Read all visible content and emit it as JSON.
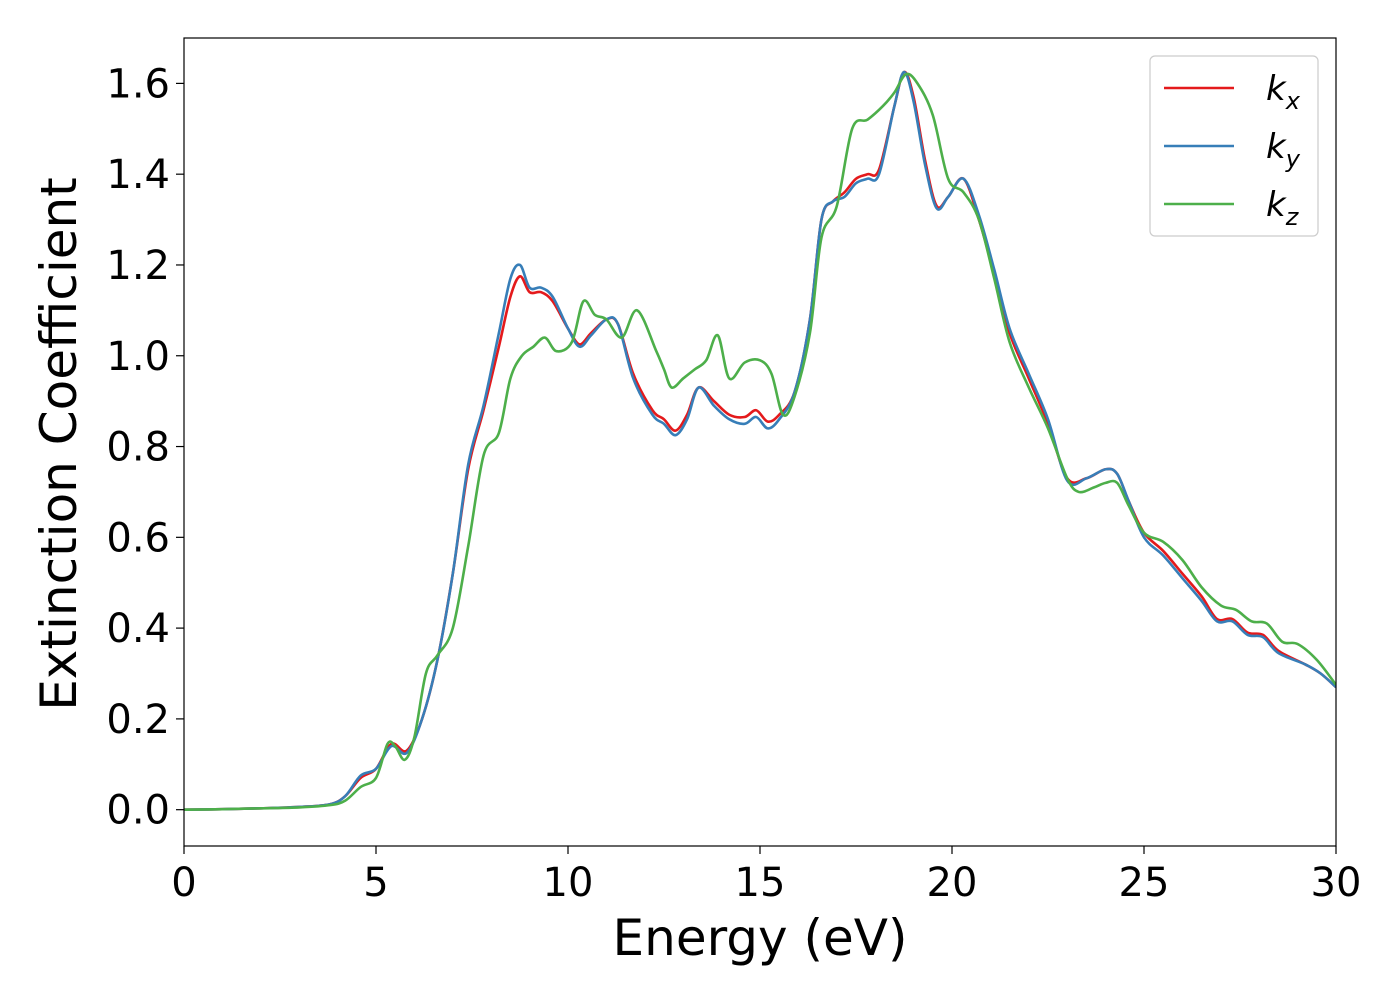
{
  "chart_data": {
    "type": "line",
    "xlabel": "Energy (eV)",
    "ylabel": "Extinction Coefficient",
    "xlim": [
      0,
      30
    ],
    "ylim": [
      -0.08,
      1.7
    ],
    "xticks": [
      0,
      5,
      10,
      15,
      20,
      25,
      30
    ],
    "xtick_labels": [
      "0",
      "5",
      "10",
      "15",
      "20",
      "25",
      "30"
    ],
    "yticks": [
      0.0,
      0.2,
      0.4,
      0.6,
      0.8,
      1.0,
      1.2,
      1.4,
      1.6
    ],
    "ytick_labels": [
      "0.0",
      "0.2",
      "0.4",
      "0.6",
      "0.8",
      "1.0",
      "1.2",
      "1.4",
      "1.6"
    ],
    "grid": false,
    "legend_position": "top-right",
    "series": [
      {
        "name": "k_x",
        "label_base": "k",
        "label_sub": "x",
        "color": "#e41a1c",
        "points": [
          [
            0,
            0.0
          ],
          [
            1,
            0.001
          ],
          [
            2,
            0.003
          ],
          [
            3,
            0.006
          ],
          [
            3.8,
            0.012
          ],
          [
            4.2,
            0.03
          ],
          [
            4.6,
            0.07
          ],
          [
            5,
            0.09
          ],
          [
            5.4,
            0.145
          ],
          [
            5.8,
            0.13
          ],
          [
            6.2,
            0.2
          ],
          [
            6.6,
            0.33
          ],
          [
            7,
            0.52
          ],
          [
            7.4,
            0.75
          ],
          [
            7.8,
            0.88
          ],
          [
            8.2,
            1.02
          ],
          [
            8.5,
            1.13
          ],
          [
            8.75,
            1.175
          ],
          [
            9,
            1.14
          ],
          [
            9.3,
            1.14
          ],
          [
            9.6,
            1.12
          ],
          [
            10,
            1.06
          ],
          [
            10.3,
            1.025
          ],
          [
            10.6,
            1.05
          ],
          [
            11,
            1.08
          ],
          [
            11.3,
            1.07
          ],
          [
            11.7,
            0.96
          ],
          [
            12.2,
            0.88
          ],
          [
            12.5,
            0.86
          ],
          [
            12.8,
            0.835
          ],
          [
            13.1,
            0.87
          ],
          [
            13.4,
            0.93
          ],
          [
            13.8,
            0.9
          ],
          [
            14.2,
            0.87
          ],
          [
            14.6,
            0.865
          ],
          [
            14.9,
            0.88
          ],
          [
            15.2,
            0.855
          ],
          [
            15.5,
            0.87
          ],
          [
            15.9,
            0.92
          ],
          [
            16.3,
            1.08
          ],
          [
            16.6,
            1.3
          ],
          [
            16.9,
            1.34
          ],
          [
            17.2,
            1.36
          ],
          [
            17.5,
            1.39
          ],
          [
            17.8,
            1.4
          ],
          [
            18.1,
            1.41
          ],
          [
            18.5,
            1.55
          ],
          [
            18.75,
            1.625
          ],
          [
            19,
            1.57
          ],
          [
            19.3,
            1.43
          ],
          [
            19.6,
            1.33
          ],
          [
            19.9,
            1.35
          ],
          [
            20.3,
            1.39
          ],
          [
            20.7,
            1.3
          ],
          [
            21.1,
            1.18
          ],
          [
            21.5,
            1.05
          ],
          [
            22,
            0.95
          ],
          [
            22.5,
            0.85
          ],
          [
            23,
            0.73
          ],
          [
            23.5,
            0.73
          ],
          [
            24,
            0.75
          ],
          [
            24.3,
            0.74
          ],
          [
            24.6,
            0.68
          ],
          [
            25,
            0.61
          ],
          [
            25.5,
            0.57
          ],
          [
            26,
            0.52
          ],
          [
            26.5,
            0.47
          ],
          [
            26.9,
            0.42
          ],
          [
            27.3,
            0.42
          ],
          [
            27.7,
            0.39
          ],
          [
            28.1,
            0.385
          ],
          [
            28.5,
            0.35
          ],
          [
            29.2,
            0.32
          ],
          [
            29.6,
            0.3
          ],
          [
            30,
            0.27
          ]
        ]
      },
      {
        "name": "k_y",
        "label_base": "k",
        "label_sub": "y",
        "color": "#377eb8",
        "points": [
          [
            0,
            0.0
          ],
          [
            1,
            0.001
          ],
          [
            2,
            0.003
          ],
          [
            3,
            0.006
          ],
          [
            3.8,
            0.012
          ],
          [
            4.2,
            0.03
          ],
          [
            4.6,
            0.075
          ],
          [
            5,
            0.09
          ],
          [
            5.4,
            0.14
          ],
          [
            5.8,
            0.125
          ],
          [
            6.2,
            0.2
          ],
          [
            6.6,
            0.33
          ],
          [
            7,
            0.52
          ],
          [
            7.4,
            0.76
          ],
          [
            7.8,
            0.89
          ],
          [
            8.2,
            1.05
          ],
          [
            8.5,
            1.17
          ],
          [
            8.75,
            1.2
          ],
          [
            9,
            1.15
          ],
          [
            9.3,
            1.15
          ],
          [
            9.6,
            1.13
          ],
          [
            10,
            1.06
          ],
          [
            10.3,
            1.02
          ],
          [
            10.6,
            1.045
          ],
          [
            11,
            1.08
          ],
          [
            11.3,
            1.07
          ],
          [
            11.7,
            0.95
          ],
          [
            12.2,
            0.87
          ],
          [
            12.5,
            0.85
          ],
          [
            12.8,
            0.825
          ],
          [
            13.1,
            0.86
          ],
          [
            13.4,
            0.93
          ],
          [
            13.8,
            0.89
          ],
          [
            14.2,
            0.86
          ],
          [
            14.6,
            0.85
          ],
          [
            14.9,
            0.865
          ],
          [
            15.2,
            0.84
          ],
          [
            15.5,
            0.86
          ],
          [
            15.9,
            0.92
          ],
          [
            16.3,
            1.08
          ],
          [
            16.6,
            1.3
          ],
          [
            16.9,
            1.34
          ],
          [
            17.2,
            1.35
          ],
          [
            17.5,
            1.38
          ],
          [
            17.8,
            1.39
          ],
          [
            18.1,
            1.4
          ],
          [
            18.5,
            1.55
          ],
          [
            18.75,
            1.625
          ],
          [
            19,
            1.56
          ],
          [
            19.3,
            1.42
          ],
          [
            19.6,
            1.325
          ],
          [
            19.9,
            1.35
          ],
          [
            20.3,
            1.39
          ],
          [
            20.7,
            1.31
          ],
          [
            21.1,
            1.19
          ],
          [
            21.5,
            1.06
          ],
          [
            22,
            0.96
          ],
          [
            22.5,
            0.86
          ],
          [
            23,
            0.725
          ],
          [
            23.5,
            0.73
          ],
          [
            24,
            0.75
          ],
          [
            24.3,
            0.74
          ],
          [
            24.6,
            0.68
          ],
          [
            25,
            0.6
          ],
          [
            25.5,
            0.56
          ],
          [
            26,
            0.51
          ],
          [
            26.5,
            0.46
          ],
          [
            26.9,
            0.415
          ],
          [
            27.3,
            0.415
          ],
          [
            27.7,
            0.385
          ],
          [
            28.1,
            0.38
          ],
          [
            28.5,
            0.345
          ],
          [
            29.2,
            0.32
          ],
          [
            29.6,
            0.3
          ],
          [
            30,
            0.27
          ]
        ]
      },
      {
        "name": "k_z",
        "label_base": "k",
        "label_sub": "z",
        "color": "#4daf4a",
        "points": [
          [
            0,
            0.0
          ],
          [
            1,
            0.001
          ],
          [
            2,
            0.003
          ],
          [
            3,
            0.005
          ],
          [
            3.8,
            0.01
          ],
          [
            4.2,
            0.02
          ],
          [
            4.6,
            0.05
          ],
          [
            5,
            0.07
          ],
          [
            5.3,
            0.145
          ],
          [
            5.5,
            0.14
          ],
          [
            5.75,
            0.11
          ],
          [
            6,
            0.16
          ],
          [
            6.3,
            0.3
          ],
          [
            6.6,
            0.34
          ],
          [
            7,
            0.4
          ],
          [
            7.4,
            0.58
          ],
          [
            7.8,
            0.78
          ],
          [
            8.2,
            0.83
          ],
          [
            8.5,
            0.95
          ],
          [
            8.8,
            1.0
          ],
          [
            9.1,
            1.02
          ],
          [
            9.4,
            1.04
          ],
          [
            9.7,
            1.01
          ],
          [
            10.1,
            1.03
          ],
          [
            10.4,
            1.12
          ],
          [
            10.7,
            1.09
          ],
          [
            11,
            1.08
          ],
          [
            11.4,
            1.04
          ],
          [
            11.8,
            1.1
          ],
          [
            12.3,
            1.01
          ],
          [
            12.5,
            0.97
          ],
          [
            12.7,
            0.93
          ],
          [
            13,
            0.95
          ],
          [
            13.3,
            0.97
          ],
          [
            13.6,
            0.99
          ],
          [
            13.9,
            1.045
          ],
          [
            14.2,
            0.95
          ],
          [
            14.6,
            0.985
          ],
          [
            15,
            0.99
          ],
          [
            15.3,
            0.96
          ],
          [
            15.6,
            0.87
          ],
          [
            15.9,
            0.91
          ],
          [
            16.3,
            1.05
          ],
          [
            16.6,
            1.26
          ],
          [
            17,
            1.33
          ],
          [
            17.4,
            1.5
          ],
          [
            17.8,
            1.52
          ],
          [
            18.2,
            1.55
          ],
          [
            18.5,
            1.58
          ],
          [
            18.8,
            1.62
          ],
          [
            19.1,
            1.6
          ],
          [
            19.5,
            1.53
          ],
          [
            19.9,
            1.39
          ],
          [
            20.3,
            1.36
          ],
          [
            20.7,
            1.3
          ],
          [
            21.1,
            1.17
          ],
          [
            21.5,
            1.03
          ],
          [
            22,
            0.93
          ],
          [
            22.5,
            0.84
          ],
          [
            23,
            0.73
          ],
          [
            23.3,
            0.7
          ],
          [
            23.7,
            0.71
          ],
          [
            24,
            0.72
          ],
          [
            24.3,
            0.72
          ],
          [
            24.6,
            0.67
          ],
          [
            25,
            0.61
          ],
          [
            25.5,
            0.59
          ],
          [
            26,
            0.55
          ],
          [
            26.5,
            0.49
          ],
          [
            27,
            0.45
          ],
          [
            27.4,
            0.44
          ],
          [
            27.8,
            0.415
          ],
          [
            28.2,
            0.41
          ],
          [
            28.6,
            0.37
          ],
          [
            29,
            0.365
          ],
          [
            29.5,
            0.33
          ],
          [
            30,
            0.275
          ]
        ]
      }
    ]
  }
}
